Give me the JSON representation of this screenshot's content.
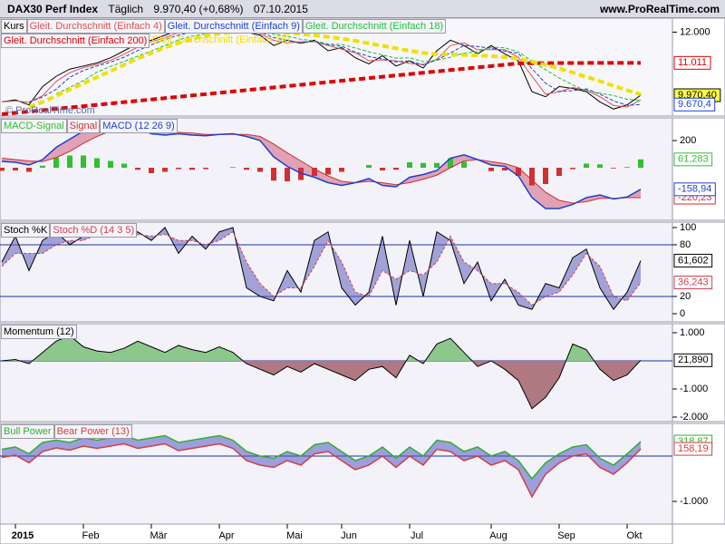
{
  "header": {
    "instrument": "DAX30 Perf Index",
    "period": "Täglich",
    "price": "9.970,40 (+0,68%)",
    "date": "07.10.2015",
    "site": "www.ProRealTime.com"
  },
  "chart_data": [
    {
      "type": "line",
      "watermark": "© ProRealTime.com",
      "categories": [
        null,
        "2015",
        null,
        null,
        null,
        null,
        "Feb",
        null,
        null,
        null,
        null,
        "Mär",
        null,
        null,
        null,
        null,
        "Apr",
        null,
        null,
        null,
        null,
        "Mai",
        null,
        null,
        null,
        "Jun",
        null,
        null,
        null,
        null,
        "Jul",
        null,
        null,
        null,
        null,
        null,
        "Aug",
        null,
        null,
        null,
        null,
        "Sep",
        null,
        null,
        null,
        null,
        "Okt",
        null
      ],
      "ylim": [
        9300,
        12450
      ],
      "yticks": [
        {
          "value": 12000,
          "label": "12.000"
        }
      ],
      "series": [
        {
          "name": "Kurs",
          "color": "#000000",
          "width": 1,
          "label_bg": "#ffff40",
          "last_label": "9.970,40",
          "values": [
            9756,
            9822,
            9660,
            10250,
            10580,
            10810,
            10910,
            11010,
            11175,
            11400,
            11640,
            11740,
            11900,
            12070,
            12030,
            11970,
            12070,
            12130,
            12000,
            11900,
            11570,
            11740,
            11640,
            11740,
            11400,
            11500,
            11175,
            10980,
            11240,
            10910,
            11075,
            10845,
            11400,
            11740,
            11570,
            11300,
            11570,
            11300,
            11075,
            10085,
            9920,
            10250,
            10185,
            10085,
            9755,
            9525,
            9660,
            9970.4
          ]
        },
        {
          "name": "Gleit. Durchschnitt (Einfach 4)",
          "color": "#e05050",
          "width": 1,
          "values": [
            9756,
            9789,
            9741,
            9955,
            10415,
            10695,
            10860,
            10960,
            11093,
            11288,
            11520,
            11690,
            11820,
            11985,
            12050,
            12000,
            12020,
            12100,
            12065,
            11950,
            11735,
            11655,
            11690,
            11690,
            11570,
            11450,
            11338,
            11078,
            11110,
            11075,
            10993,
            10960,
            11123,
            11570,
            11655,
            11435,
            11435,
            11435,
            11188,
            10580,
            10003,
            10085,
            10218,
            10135,
            9920,
            9640,
            9593,
            9815
          ]
        },
        {
          "name": "Gleit. Durchschnitt (Einfach 9)",
          "color": "#2040d0",
          "width": 1,
          "dash": "4 2",
          "last_label": "9.670,4",
          "values": [
            null,
            null,
            9746,
            9911,
            10163,
            10547,
            10767,
            10910,
            11032,
            11195,
            11405,
            11593,
            11760,
            11903,
            12000,
            11990,
            12023,
            12057,
            12067,
            12000,
            11823,
            11737,
            11650,
            11707,
            11593,
            11547,
            11358,
            11218,
            11132,
            11043,
            11075,
            10943,
            11107,
            11328,
            11570,
            11537,
            11480,
            11390,
            11315,
            10820,
            10360,
            10085,
            10118,
            10173,
            10008,
            9788,
            9647,
            9670.4
          ]
        },
        {
          "name": "Gleit. Durchschnitt (Einfach 18)",
          "color": "#20c040",
          "width": 1,
          "dash": "4 2",
          "values": [
            null,
            null,
            null,
            null,
            10014,
            10224,
            10442,
            10712,
            10897,
            11061,
            11227,
            11393,
            11571,
            11750,
            11876,
            11942,
            11996,
            12054,
            12040,
            12014,
            11928,
            11868,
            11770,
            11718,
            11618,
            11600,
            11491,
            11367,
            11267,
            11161,
            11174,
            11050,
            11094,
            11194,
            11326,
            11371,
            11516,
            11496,
            11363,
            11066,
            10790,
            10526,
            10303,
            10105,
            10039,
            9960,
            9841,
            9799
          ]
        },
        {
          "name": "Gleit. Durchschnitt (Einfach 200)",
          "color": "#e00000",
          "width": 4,
          "dash": "7 4",
          "last_label": "11.011",
          "values": [
            9360,
            9403,
            9446,
            9489,
            9532,
            9575,
            9618,
            9661,
            9704,
            9747,
            9790,
            9833,
            9876,
            9919,
            9962,
            10005,
            10048,
            10091,
            10134,
            10177,
            10220,
            10263,
            10306,
            10349,
            10392,
            10435,
            10478,
            10521,
            10564,
            10607,
            10650,
            10693,
            10736,
            10779,
            10822,
            10865,
            10908,
            10951,
            10994,
            11000,
            11003,
            11005,
            11007,
            11008,
            11009,
            11010,
            11011,
            11011
          ]
        },
        {
          "name": "Gleit. Durchschnitt (Einfach 38)",
          "color": "#f0e000",
          "width": 4,
          "dash": "7 4",
          "values": [
            null,
            null,
            9590,
            9750,
            9950,
            10150,
            10350,
            10550,
            10750,
            10950,
            11150,
            11330,
            11500,
            11650,
            11780,
            11880,
            11950,
            12000,
            12020,
            12030,
            12010,
            11980,
            11940,
            11900,
            11850,
            11790,
            11720,
            11640,
            11560,
            11480,
            11400,
            11330,
            11290,
            11280,
            11270,
            11250,
            11230,
            11200,
            11140,
            11050,
            10950,
            10830,
            10700,
            10560,
            10420,
            10270,
            10130,
            10000
          ]
        }
      ]
    },
    {
      "type": "line",
      "ylim": [
        -387,
        367
      ],
      "yticks": [
        200
      ],
      "fill_between": [
        2,
        1
      ],
      "fill_color": "#d06080",
      "series": [
        {
          "name": "MACD-Signal",
          "kind": "histogram",
          "color": "#30c030",
          "negative_color": "#d03030",
          "last_label": "61,283",
          "values": [
            -23,
            -20,
            -30,
            15,
            75,
            90,
            90,
            70,
            50,
            30,
            -15,
            -40,
            -30,
            -10,
            -15,
            -10,
            0,
            5,
            -15,
            -30,
            -95,
            -100,
            -90,
            -60,
            -50,
            -30,
            0,
            20,
            -20,
            -15,
            40,
            35,
            35,
            70,
            45,
            0,
            -25,
            -20,
            -60,
            -130,
            -120,
            -60,
            -10,
            30,
            25,
            -5,
            5,
            61.283
          ]
        },
        {
          "name": "Signal",
          "color": "#d03030",
          "width": 1,
          "last_label": "-220,23",
          "values": [
            70,
            60,
            50,
            45,
            75,
            120,
            180,
            230,
            270,
            300,
            305,
            290,
            270,
            260,
            255,
            245,
            245,
            245,
            245,
            230,
            175,
            110,
            50,
            -10,
            -60,
            -100,
            -110,
            -100,
            -110,
            -125,
            -110,
            -85,
            -55,
            0,
            50,
            60,
            45,
            30,
            0,
            -90,
            -180,
            -240,
            -260,
            -250,
            -225,
            -225,
            -220,
            -220.23
          ]
        },
        {
          "name": "MACD (12 26 9)",
          "color": "#2040d0",
          "width": 1.5,
          "last_label": "-158,94",
          "values": [
            47,
            40,
            20,
            60,
            150,
            210,
            270,
            300,
            320,
            330,
            290,
            250,
            240,
            250,
            240,
            235,
            245,
            250,
            230,
            200,
            80,
            10,
            -40,
            -70,
            -110,
            -130,
            -110,
            -80,
            -130,
            -140,
            -70,
            -50,
            -20,
            70,
            95,
            60,
            20,
            10,
            -60,
            -220,
            -300,
            -300,
            -270,
            -220,
            -200,
            -230,
            -215,
            -158.94
          ]
        }
      ]
    },
    {
      "type": "line",
      "ylim": [
        -9.5,
        106.3
      ],
      "yticks": [
        0,
        20,
        80,
        100
      ],
      "levels": [
        20,
        80
      ],
      "fill_between": [
        0,
        1
      ],
      "fill_color": "#6060c0",
      "series": [
        {
          "name": "Stoch %K",
          "color": "#000000",
          "width": 1,
          "last_label": "61,602",
          "values": [
            60,
            90,
            50,
            85,
            95,
            80,
            90,
            100,
            95,
            90,
            95,
            85,
            100,
            70,
            90,
            75,
            95,
            100,
            30,
            20,
            15,
            50,
            25,
            85,
            95,
            30,
            10,
            25,
            90,
            10,
            85,
            20,
            95,
            85,
            35,
            60,
            15,
            40,
            10,
            5,
            35,
            30,
            65,
            75,
            30,
            5,
            25,
            61.602
          ]
        },
        {
          "name": "Stoch %D (14 3 5)",
          "color": "#d04050",
          "width": 1,
          "dash": "3 2",
          "last_label": "36,243",
          "values": [
            55,
            70,
            70,
            70,
            80,
            85,
            85,
            92,
            95,
            93,
            92,
            90,
            92,
            85,
            85,
            80,
            85,
            95,
            60,
            35,
            20,
            30,
            30,
            55,
            85,
            60,
            25,
            20,
            50,
            40,
            50,
            45,
            60,
            90,
            60,
            50,
            35,
            35,
            25,
            10,
            20,
            25,
            45,
            70,
            55,
            20,
            15,
            36.243
          ]
        }
      ]
    },
    {
      "type": "line",
      "ylim": [
        -2161,
        1323
      ],
      "yticks": [
        {
          "value": 1000,
          "label": "1.000"
        },
        {
          "value": -1000,
          "label": "-1.000"
        },
        {
          "value": -2000,
          "label": "-2.000"
        }
      ],
      "levels": [
        0
      ],
      "fill_positive": "#8cc88c",
      "fill_negative": "#b07880",
      "series": [
        {
          "name": "Momentum (12)",
          "color": "#000000",
          "width": 1,
          "last_label": "21,890",
          "values": [
            0,
            50,
            -100,
            300,
            700,
            900,
            500,
            350,
            300,
            450,
            700,
            500,
            300,
            550,
            400,
            300,
            500,
            300,
            -100,
            -300,
            -500,
            -200,
            -400,
            -100,
            -300,
            -500,
            -700,
            -300,
            -200,
            -600,
            200,
            -100,
            600,
            800,
            300,
            -200,
            0,
            -300,
            -700,
            -1700,
            -1300,
            -600,
            600,
            400,
            -300,
            -700,
            -500,
            21.89
          ]
        }
      ]
    },
    {
      "type": "line",
      "ylim": [
        -1500,
        720
      ],
      "yticks": [
        {
          "value": -1000,
          "label": "-1.000"
        }
      ],
      "levels": [
        0
      ],
      "fill_between": [
        0,
        1
      ],
      "fill_color": "#5a5ac8",
      "series": [
        {
          "name": "Bull Power",
          "color": "#30b030",
          "width": 1.5,
          "last_label": "318,87",
          "values": [
            150,
            200,
            50,
            300,
            350,
            300,
            400,
            350,
            400,
            450,
            350,
            400,
            450,
            300,
            350,
            400,
            450,
            350,
            100,
            0,
            -50,
            100,
            0,
            250,
            300,
            100,
            -100,
            0,
            200,
            -50,
            200,
            0,
            350,
            300,
            100,
            200,
            0,
            100,
            -100,
            -500,
            -150,
            50,
            200,
            250,
            -50,
            -200,
            50,
            318.87
          ]
        },
        {
          "name": "Bear Power (13)",
          "color": "#d04040",
          "width": 1.5,
          "last_label": "158,19",
          "values": [
            -30,
            20,
            -150,
            100,
            180,
            130,
            220,
            170,
            220,
            270,
            170,
            220,
            270,
            120,
            170,
            220,
            270,
            170,
            -100,
            -200,
            -250,
            -100,
            -200,
            50,
            100,
            -100,
            -300,
            -200,
            0,
            -250,
            0,
            -200,
            150,
            100,
            -100,
            0,
            -200,
            -100,
            -300,
            -900,
            -400,
            -150,
            0,
            50,
            -250,
            -400,
            -150,
            158.19
          ]
        }
      ]
    }
  ]
}
